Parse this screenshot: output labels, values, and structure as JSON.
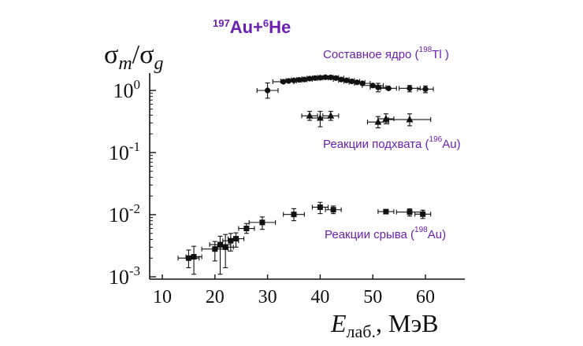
{
  "chart_data": {
    "type": "scatter",
    "title": {
      "parts": [
        {
          "t": "197",
          "sup": true
        },
        {
          "t": "Au+",
          "sup": false
        },
        {
          "t": "6",
          "sup": true
        },
        {
          "t": "He",
          "sup": false
        }
      ]
    },
    "ylabel": {
      "sigma1": "σ",
      "sub1": "m",
      "slash": "/",
      "sigma2": "σ",
      "sub2": "g"
    },
    "xlabel": {
      "main": "E",
      "sub": "лаб.",
      "unit": ", МэВ"
    },
    "xlim": [
      7,
      67
    ],
    "ylim": [
      0.001,
      3
    ],
    "yscale": "log",
    "x_ticks": [
      10,
      20,
      30,
      40,
      50,
      60
    ],
    "y_ticks": [
      {
        "value": 0.001,
        "exp": "-3"
      },
      {
        "value": 0.01,
        "exp": "-2"
      },
      {
        "value": 0.1,
        "exp": "-1"
      },
      {
        "value": 1,
        "exp": "0"
      }
    ],
    "colors": {
      "points": "#111111",
      "annotation": "#6a1fb0",
      "title": "#6a1fb0",
      "axis": "#111111"
    },
    "series": [
      {
        "marker": "circle",
        "label": {
          "parts": [
            {
              "t": "Составное ядро (",
              "sup": false
            },
            {
              "t": "198",
              "sup": true
            },
            {
              "t": "Tl )",
              "sup": false
            }
          ]
        },
        "points": [
          {
            "x": 30,
            "y": 1.0,
            "xerr": 2,
            "ylo": 0.75,
            "yhi": 1.32
          },
          {
            "x": 33,
            "y": 1.38,
            "xerr": 2
          },
          {
            "x": 34,
            "y": 1.42,
            "xerr": 1.5
          },
          {
            "x": 35,
            "y": 1.45,
            "xerr": 1.5
          },
          {
            "x": 36,
            "y": 1.48,
            "xerr": 1.5
          },
          {
            "x": 37,
            "y": 1.5,
            "xerr": 1.5
          },
          {
            "x": 38,
            "y": 1.55,
            "xerr": 1.5
          },
          {
            "x": 39,
            "y": 1.58,
            "xerr": 1.5
          },
          {
            "x": 40,
            "y": 1.6,
            "xerr": 1.5
          },
          {
            "x": 41,
            "y": 1.63,
            "xerr": 1.5
          },
          {
            "x": 42,
            "y": 1.62,
            "xerr": 1.5
          },
          {
            "x": 43,
            "y": 1.58,
            "xerr": 1.5
          },
          {
            "x": 44,
            "y": 1.5,
            "xerr": 1.5
          },
          {
            "x": 45,
            "y": 1.45,
            "xerr": 1.5
          },
          {
            "x": 46,
            "y": 1.4,
            "xerr": 1.5
          },
          {
            "x": 47,
            "y": 1.35,
            "xerr": 1.5
          },
          {
            "x": 48,
            "y": 1.3,
            "xerr": 1.5
          },
          {
            "x": 50,
            "y": 1.2,
            "xerr": 2
          },
          {
            "x": 51,
            "y": 1.12,
            "xerr": 1.5,
            "ylo": 0.95,
            "yhi": 1.3
          },
          {
            "x": 53,
            "y": 1.08,
            "xerr": 1.5
          },
          {
            "x": 57,
            "y": 1.08,
            "xerr": 2,
            "ylo": 0.95,
            "yhi": 1.2
          },
          {
            "x": 60,
            "y": 1.05,
            "xerr": 1.5,
            "ylo": 0.92,
            "yhi": 1.18
          }
        ]
      },
      {
        "marker": "triangle",
        "label": {
          "parts": [
            {
              "t": "Реакции подхвата (",
              "sup": false
            },
            {
              "t": "196",
              "sup": true
            },
            {
              "t": "Au)",
              "sup": false
            }
          ]
        },
        "points": [
          {
            "x": 38,
            "y": 0.39,
            "xerr": 1.5,
            "ylo": 0.33,
            "yhi": 0.46
          },
          {
            "x": 40,
            "y": 0.36,
            "xerr": 2,
            "ylo": 0.26,
            "yhi": 0.46
          },
          {
            "x": 42,
            "y": 0.39,
            "xerr": 1.5,
            "ylo": 0.33,
            "yhi": 0.46
          },
          {
            "x": 51,
            "y": 0.31,
            "xerr": 2,
            "ylo": 0.25,
            "yhi": 0.38
          },
          {
            "x": 52.5,
            "y": 0.35,
            "xerr": 1.5,
            "ylo": 0.29,
            "yhi": 0.42
          },
          {
            "x": 57,
            "y": 0.34,
            "xerr": 4,
            "ylo": 0.27,
            "yhi": 0.42
          }
        ]
      },
      {
        "marker": "square",
        "label": {
          "parts": [
            {
              "t": "Реакции срыва (",
              "sup": false
            },
            {
              "t": "198",
              "sup": true
            },
            {
              "t": "Au)",
              "sup": false
            }
          ]
        },
        "points": [
          {
            "x": 15,
            "y": 0.002,
            "xerr": 2,
            "ylo": 0.0014,
            "yhi": 0.0027
          },
          {
            "x": 16,
            "y": 0.0021,
            "xerr": 1.5,
            "ylo": 0.0011,
            "yhi": 0.0031
          },
          {
            "x": 20,
            "y": 0.0028,
            "xerr": 2.5,
            "ylo": 0.0018,
            "yhi": 0.0037
          },
          {
            "x": 21,
            "y": 0.0033,
            "xerr": 2,
            "ylo": 0.0011,
            "yhi": 0.0045
          },
          {
            "x": 22,
            "y": 0.003,
            "xerr": 1.5,
            "ylo": 0.0014,
            "yhi": 0.0048
          },
          {
            "x": 23,
            "y": 0.0038,
            "xerr": 1.5,
            "ylo": 0.0026,
            "yhi": 0.005
          },
          {
            "x": 24,
            "y": 0.0041,
            "xerr": 1.5,
            "ylo": 0.003,
            "yhi": 0.0051
          },
          {
            "x": 26,
            "y": 0.006,
            "xerr": 1.5,
            "ylo": 0.005,
            "yhi": 0.0072
          },
          {
            "x": 29,
            "y": 0.0075,
            "xerr": 2.5,
            "ylo": 0.0058,
            "yhi": 0.0092
          },
          {
            "x": 35,
            "y": 0.0101,
            "xerr": 2,
            "ylo": 0.008,
            "yhi": 0.0125
          },
          {
            "x": 40,
            "y": 0.0132,
            "xerr": 1.5,
            "ylo": 0.0104,
            "yhi": 0.0158
          },
          {
            "x": 42.5,
            "y": 0.012,
            "xerr": 1.5,
            "ylo": 0.0104,
            "yhi": 0.0138
          },
          {
            "x": 52.5,
            "y": 0.0112,
            "xerr": 1.5
          },
          {
            "x": 57,
            "y": 0.011,
            "xerr": 2.5,
            "ylo": 0.0095,
            "yhi": 0.0124
          },
          {
            "x": 59.5,
            "y": 0.0102,
            "xerr": 1.5,
            "ylo": 0.0087,
            "yhi": 0.0118
          }
        ]
      }
    ]
  }
}
